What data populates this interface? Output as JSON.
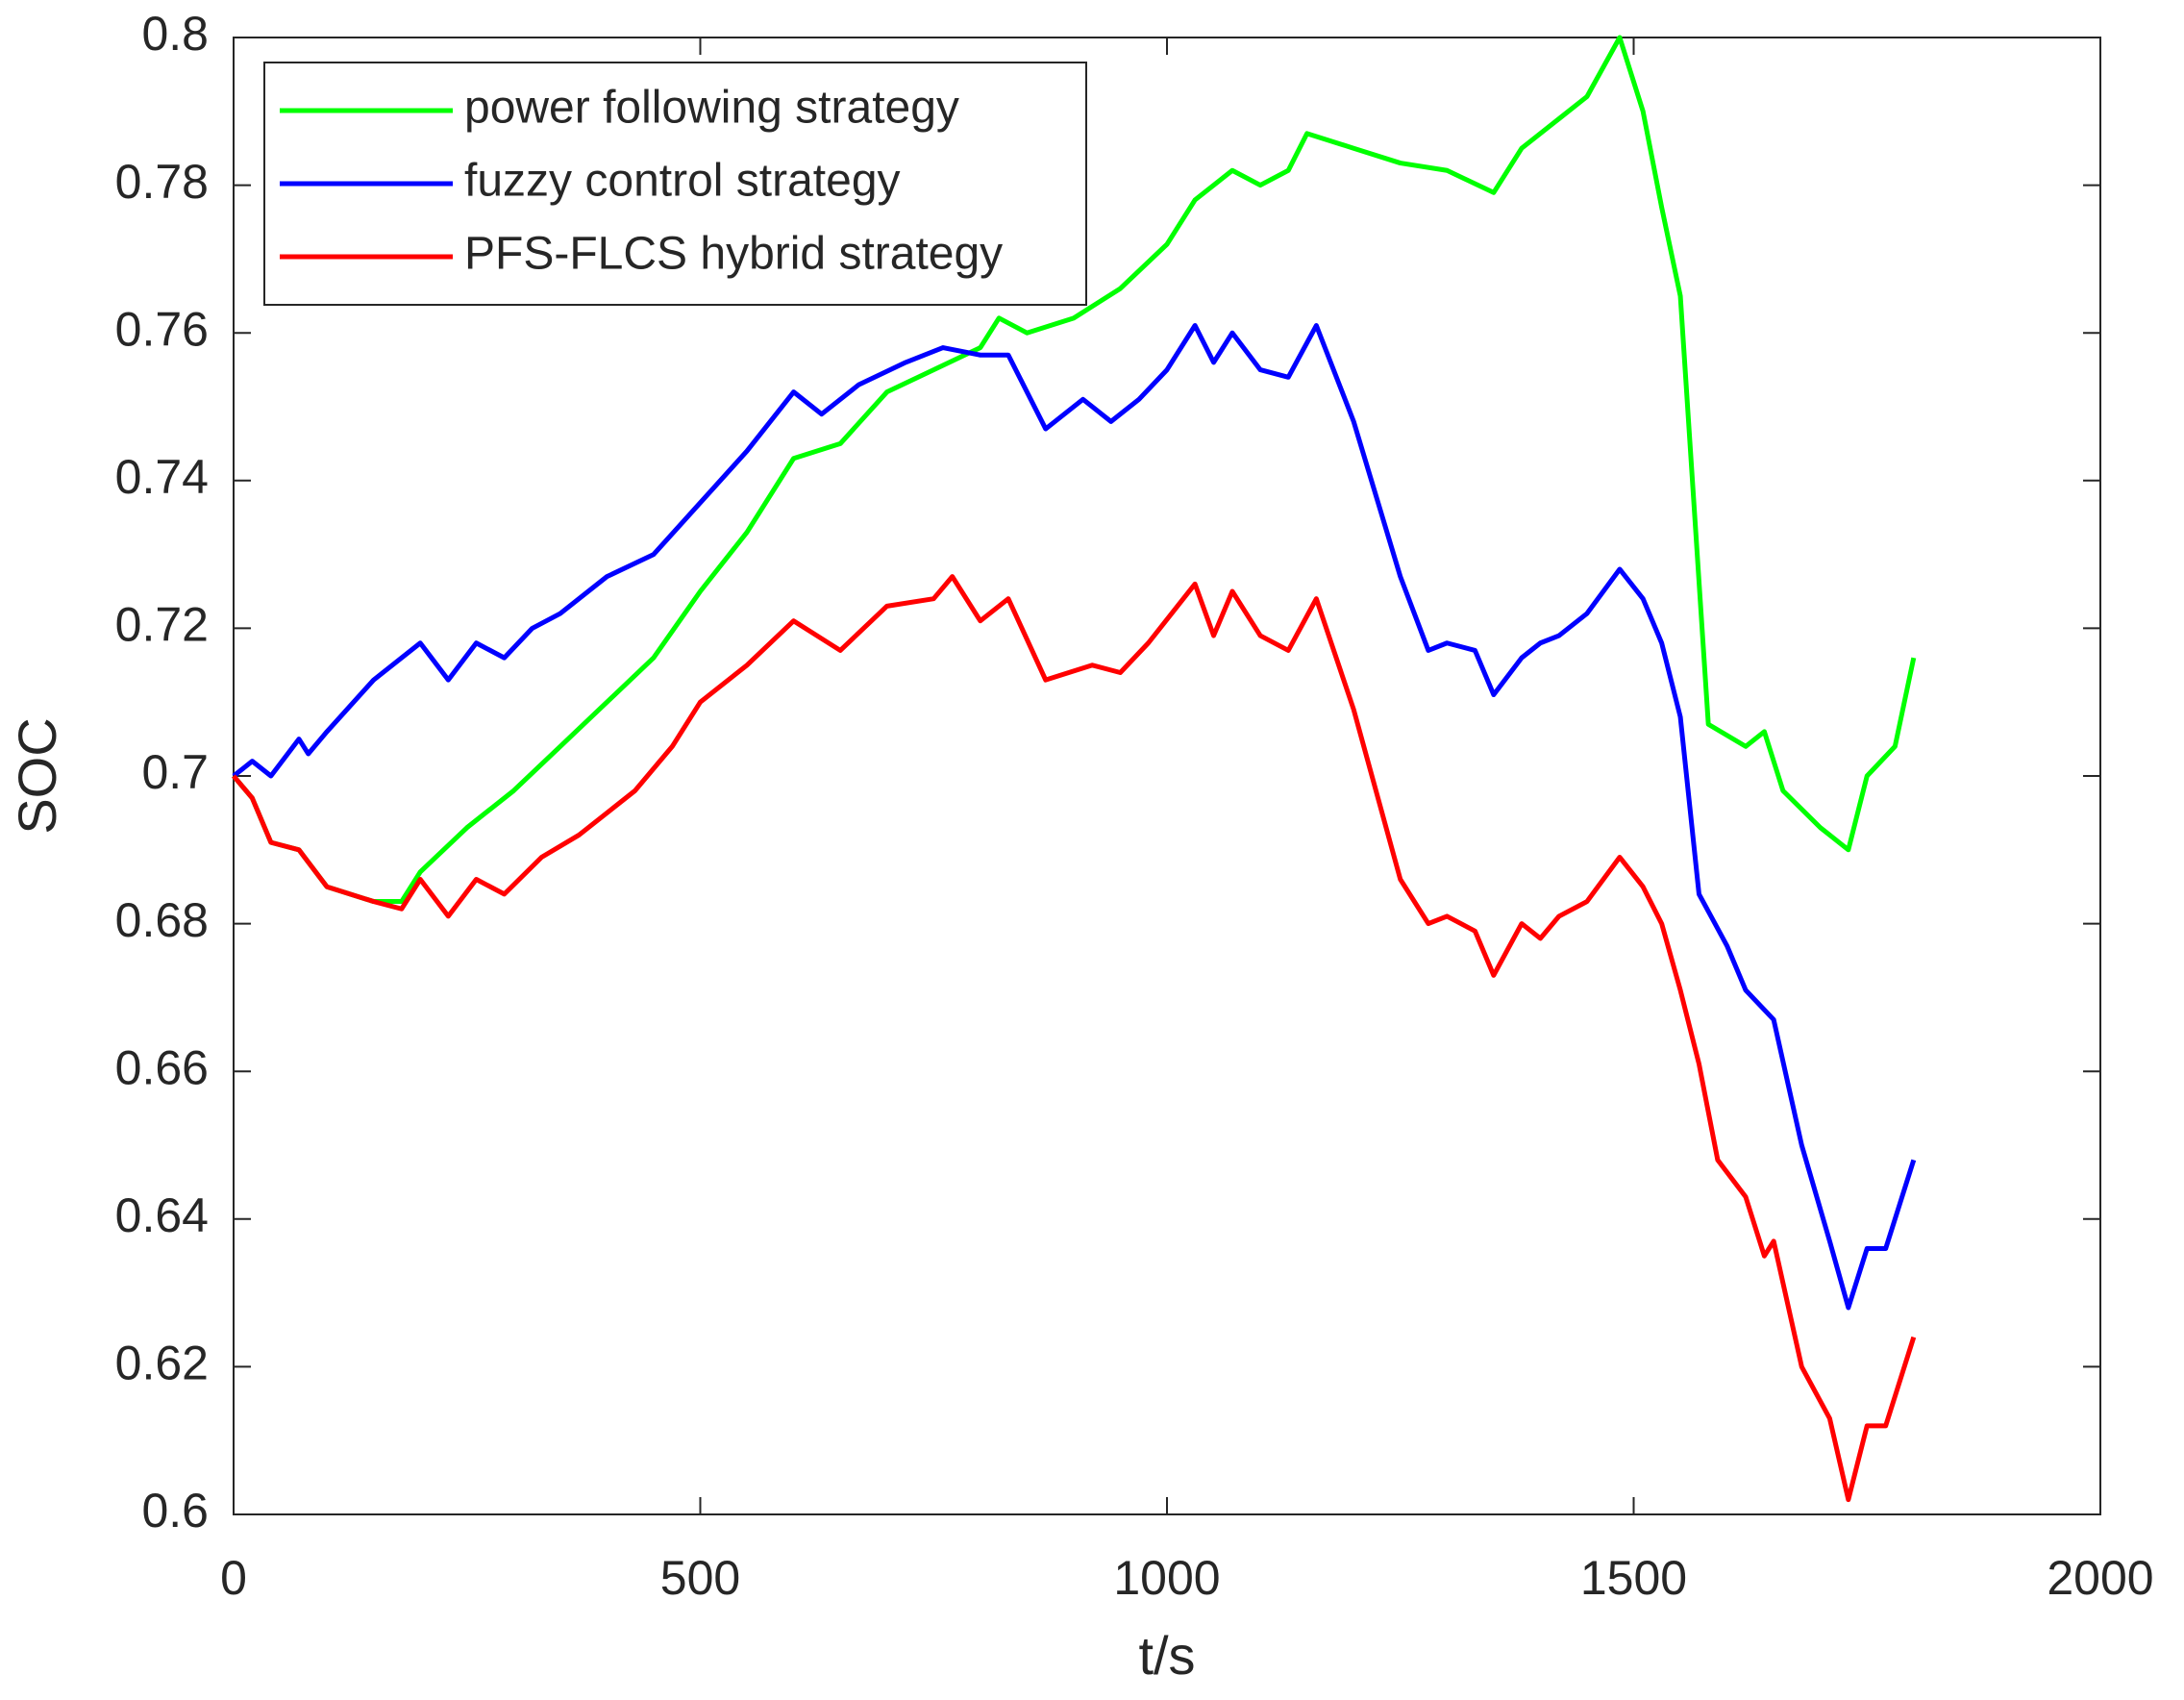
{
  "chart_data": {
    "type": "line",
    "xlabel": "t/s",
    "ylabel": "SOC",
    "xlim": [
      0,
      2000
    ],
    "xticks": [
      0,
      500,
      1000,
      1500,
      2000
    ],
    "ylim": [
      0.6,
      0.8
    ],
    "yticks": [
      0.6,
      0.62,
      0.64,
      0.66,
      0.68,
      0.7,
      0.72,
      0.74,
      0.76,
      0.78,
      0.8
    ],
    "grid": false,
    "legend": "upper left",
    "series": [
      {
        "name": "power following strategy",
        "color": "#00ff00",
        "x": [
          0,
          20,
          40,
          70,
          100,
          150,
          180,
          200,
          250,
          300,
          350,
          400,
          450,
          500,
          550,
          600,
          650,
          700,
          750,
          800,
          820,
          850,
          900,
          950,
          1000,
          1030,
          1070,
          1100,
          1130,
          1150,
          1200,
          1250,
          1300,
          1350,
          1380,
          1420,
          1450,
          1485,
          1510,
          1530,
          1550,
          1580,
          1620,
          1640,
          1660,
          1700,
          1730,
          1750,
          1780,
          1800
        ],
        "values": [
          0.7,
          0.697,
          0.691,
          0.69,
          0.685,
          0.683,
          0.683,
          0.687,
          0.693,
          0.698,
          0.704,
          0.71,
          0.716,
          0.725,
          0.733,
          0.743,
          0.745,
          0.752,
          0.755,
          0.758,
          0.762,
          0.76,
          0.762,
          0.766,
          0.772,
          0.778,
          0.782,
          0.78,
          0.782,
          0.787,
          0.785,
          0.783,
          0.782,
          0.779,
          0.785,
          0.789,
          0.792,
          0.8,
          0.79,
          0.777,
          0.765,
          0.707,
          0.704,
          0.706,
          0.698,
          0.693,
          0.69,
          0.7,
          0.704,
          0.716
        ]
      },
      {
        "name": "fuzzy control strategy",
        "color": "#0000ff",
        "x": [
          0,
          20,
          40,
          70,
          80,
          100,
          150,
          200,
          230,
          260,
          290,
          320,
          350,
          400,
          450,
          500,
          550,
          600,
          630,
          670,
          720,
          760,
          800,
          830,
          870,
          910,
          940,
          970,
          1000,
          1030,
          1050,
          1070,
          1100,
          1130,
          1160,
          1200,
          1250,
          1280,
          1300,
          1330,
          1350,
          1380,
          1400,
          1420,
          1450,
          1485,
          1510,
          1530,
          1550,
          1570,
          1600,
          1620,
          1650,
          1680,
          1710,
          1730,
          1750,
          1770,
          1800
        ],
        "values": [
          0.7,
          0.702,
          0.7,
          0.705,
          0.703,
          0.706,
          0.713,
          0.718,
          0.713,
          0.718,
          0.716,
          0.72,
          0.722,
          0.727,
          0.73,
          0.737,
          0.744,
          0.752,
          0.749,
          0.753,
          0.756,
          0.758,
          0.757,
          0.757,
          0.747,
          0.751,
          0.748,
          0.751,
          0.755,
          0.761,
          0.756,
          0.76,
          0.755,
          0.754,
          0.761,
          0.748,
          0.727,
          0.717,
          0.718,
          0.717,
          0.711,
          0.716,
          0.718,
          0.719,
          0.722,
          0.728,
          0.724,
          0.718,
          0.708,
          0.684,
          0.677,
          0.671,
          0.667,
          0.65,
          0.637,
          0.628,
          0.636,
          0.636,
          0.648
        ]
      },
      {
        "name": "PFS-FLCS hybrid strategy",
        "color": "#ff0000",
        "x": [
          0,
          20,
          40,
          70,
          100,
          150,
          180,
          200,
          230,
          260,
          290,
          330,
          370,
          400,
          430,
          470,
          500,
          550,
          600,
          650,
          700,
          750,
          770,
          800,
          830,
          870,
          920,
          950,
          980,
          1030,
          1050,
          1070,
          1100,
          1130,
          1160,
          1200,
          1250,
          1280,
          1300,
          1330,
          1350,
          1380,
          1400,
          1420,
          1450,
          1485,
          1510,
          1530,
          1550,
          1570,
          1590,
          1620,
          1640,
          1650,
          1680,
          1710,
          1730,
          1750,
          1770,
          1800
        ],
        "values": [
          0.7,
          0.697,
          0.691,
          0.69,
          0.685,
          0.683,
          0.682,
          0.686,
          0.681,
          0.686,
          0.684,
          0.689,
          0.692,
          0.695,
          0.698,
          0.704,
          0.71,
          0.715,
          0.721,
          0.717,
          0.723,
          0.724,
          0.727,
          0.721,
          0.724,
          0.713,
          0.715,
          0.714,
          0.718,
          0.726,
          0.719,
          0.725,
          0.719,
          0.717,
          0.724,
          0.709,
          0.686,
          0.68,
          0.681,
          0.679,
          0.673,
          0.68,
          0.678,
          0.681,
          0.683,
          0.689,
          0.685,
          0.68,
          0.671,
          0.661,
          0.648,
          0.643,
          0.635,
          0.637,
          0.62,
          0.613,
          0.602,
          0.612,
          0.612,
          0.624
        ]
      }
    ]
  }
}
